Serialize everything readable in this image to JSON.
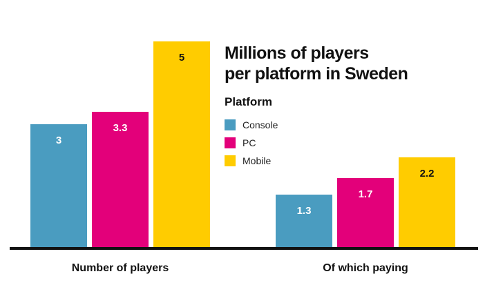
{
  "chart_data": {
    "type": "bar",
    "title": "Millions of players\nper platform in Sweden",
    "categories": [
      "Number of players",
      "Of which paying"
    ],
    "series": [
      {
        "name": "Console",
        "values": [
          3,
          1.3
        ],
        "color": "#4A9CC0"
      },
      {
        "name": "PC",
        "values": [
          3.3,
          1.7
        ],
        "color": "#E3007A"
      },
      {
        "name": "Mobile",
        "values": [
          5,
          2.2
        ],
        "color": "#FFCC00"
      }
    ],
    "ylim": [
      0,
      5.6
    ],
    "grid": false,
    "legend": {
      "title": "Platform",
      "placement": "right"
    },
    "data_labels": true
  }
}
